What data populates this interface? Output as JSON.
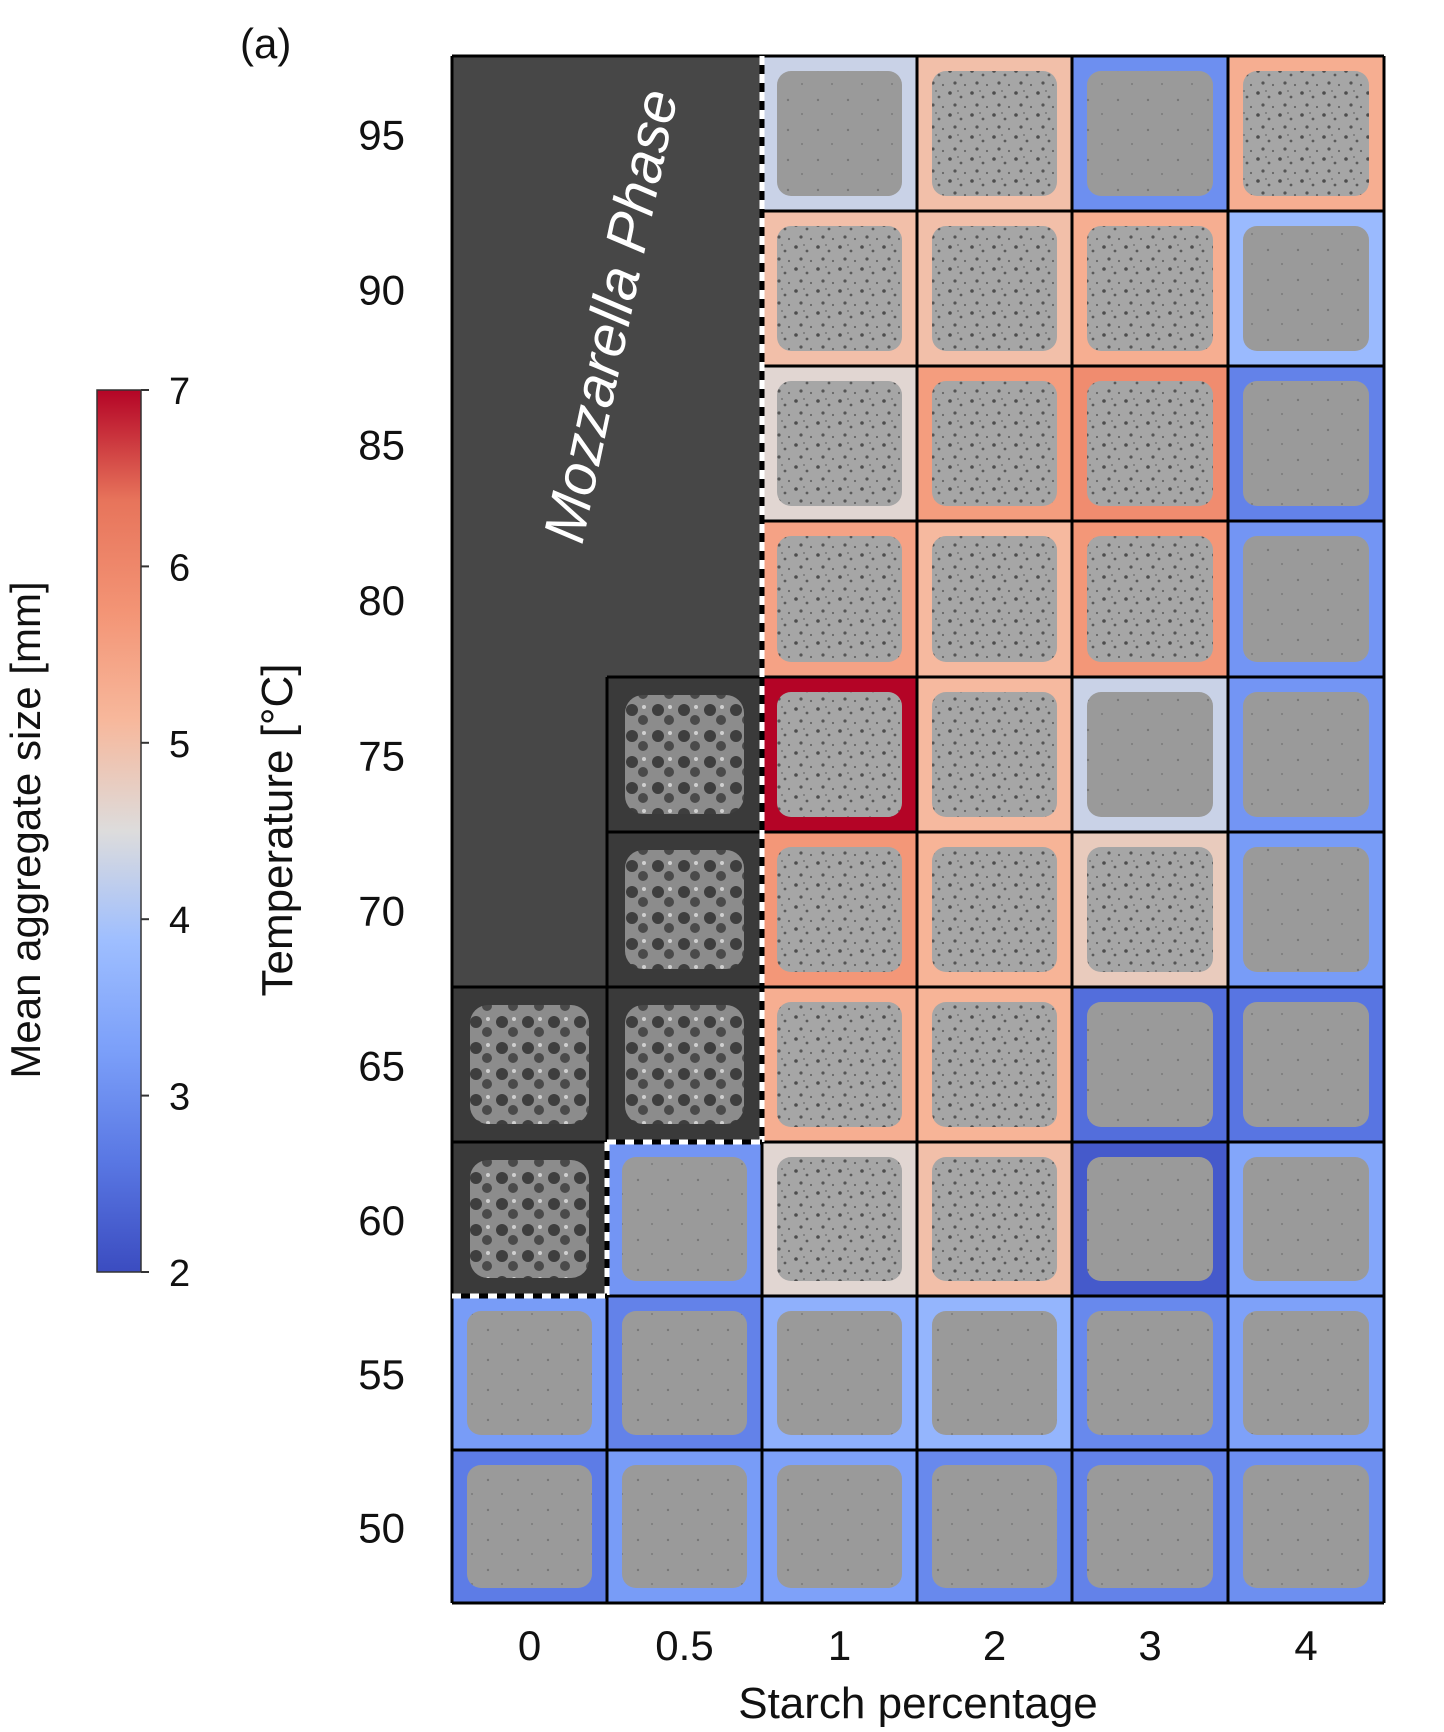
{
  "panel_label": "(a)",
  "chart_data": {
    "type": "heatmap",
    "xlabel": "Starch percentage",
    "ylabel": "Temperature [°C]",
    "x_categories": [
      "0",
      "0.5",
      "1",
      "2",
      "3",
      "4"
    ],
    "y_categories": [
      "95",
      "90",
      "85",
      "80",
      "75",
      "70",
      "65",
      "60",
      "55",
      "50"
    ],
    "colorbar": {
      "label": "Mean aggregate size [mm]",
      "min": 2,
      "max": 7,
      "ticks": [
        "2",
        "3",
        "4",
        "5",
        "6",
        "7"
      ],
      "colormap": "coolwarm",
      "position": "left"
    },
    "region_label": "Mozzarella Phase",
    "region_color": "#474747",
    "mozzarella_cells": [
      [
        95,
        "0"
      ],
      [
        95,
        "0.5"
      ],
      [
        90,
        "0"
      ],
      [
        90,
        "0.5"
      ],
      [
        85,
        "0"
      ],
      [
        85,
        "0.5"
      ],
      [
        80,
        "0"
      ],
      [
        80,
        "0.5"
      ],
      [
        75,
        "0"
      ],
      [
        75,
        "0.5"
      ],
      [
        70,
        "0"
      ],
      [
        70,
        "0.5"
      ],
      [
        65,
        "0"
      ],
      [
        65,
        "0.5"
      ],
      [
        60,
        "0"
      ]
    ],
    "mozzarella_region_boundary": "dashed white/black line",
    "cells": [
      {
        "temp": 95,
        "starch": "1",
        "size": 4.3
      },
      {
        "temp": 95,
        "starch": "2",
        "size": 5.0
      },
      {
        "temp": 95,
        "starch": "3",
        "size": 3.0
      },
      {
        "temp": 95,
        "starch": "4",
        "size": 5.3
      },
      {
        "temp": 90,
        "starch": "1",
        "size": 5.0
      },
      {
        "temp": 90,
        "starch": "2",
        "size": 5.0
      },
      {
        "temp": 90,
        "starch": "3",
        "size": 5.3
      },
      {
        "temp": 90,
        "starch": "4",
        "size": 3.8
      },
      {
        "temp": 85,
        "starch": "1",
        "size": 4.6
      },
      {
        "temp": 85,
        "starch": "2",
        "size": 5.6
      },
      {
        "temp": 85,
        "starch": "3",
        "size": 5.9
      },
      {
        "temp": 85,
        "starch": "4",
        "size": 2.8
      },
      {
        "temp": 80,
        "starch": "1",
        "size": 5.5
      },
      {
        "temp": 80,
        "starch": "2",
        "size": 5.1
      },
      {
        "temp": 80,
        "starch": "3",
        "size": 5.7
      },
      {
        "temp": 80,
        "starch": "4",
        "size": 3.1
      },
      {
        "temp": 75,
        "starch": "1",
        "size": 7.0
      },
      {
        "temp": 75,
        "starch": "2",
        "size": 5.1
      },
      {
        "temp": 75,
        "starch": "3",
        "size": 4.3
      },
      {
        "temp": 75,
        "starch": "4",
        "size": 3.1
      },
      {
        "temp": 70,
        "starch": "1",
        "size": 5.7
      },
      {
        "temp": 70,
        "starch": "2",
        "size": 5.2
      },
      {
        "temp": 70,
        "starch": "3",
        "size": 4.8
      },
      {
        "temp": 70,
        "starch": "4",
        "size": 3.2
      },
      {
        "temp": 65,
        "starch": "1",
        "size": 5.3
      },
      {
        "temp": 65,
        "starch": "2",
        "size": 5.2
      },
      {
        "temp": 65,
        "starch": "3",
        "size": 2.5
      },
      {
        "temp": 65,
        "starch": "4",
        "size": 2.6
      },
      {
        "temp": 60,
        "starch": "0.5",
        "size": 3.1
      },
      {
        "temp": 60,
        "starch": "1",
        "size": 4.6
      },
      {
        "temp": 60,
        "starch": "2",
        "size": 5.0
      },
      {
        "temp": 60,
        "starch": "3",
        "size": 2.2
      },
      {
        "temp": 60,
        "starch": "4",
        "size": 3.4
      },
      {
        "temp": 55,
        "starch": "0",
        "size": 3.2
      },
      {
        "temp": 55,
        "starch": "0.5",
        "size": 2.8
      },
      {
        "temp": 55,
        "starch": "1",
        "size": 3.6
      },
      {
        "temp": 55,
        "starch": "2",
        "size": 3.7
      },
      {
        "temp": 55,
        "starch": "3",
        "size": 2.9
      },
      {
        "temp": 55,
        "starch": "4",
        "size": 3.3
      },
      {
        "temp": 50,
        "starch": "0",
        "size": 2.7
      },
      {
        "temp": 50,
        "starch": "0.5",
        "size": 3.2
      },
      {
        "temp": 50,
        "starch": "1",
        "size": 3.3
      },
      {
        "temp": 50,
        "starch": "2",
        "size": 2.9
      },
      {
        "temp": 50,
        "starch": "3",
        "size": 2.8
      },
      {
        "temp": 50,
        "starch": "4",
        "size": 3.0
      }
    ]
  }
}
